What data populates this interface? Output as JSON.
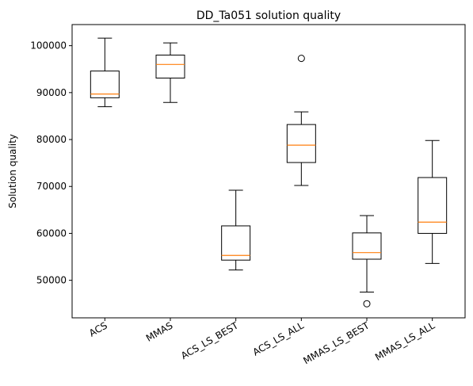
{
  "chart_data": {
    "type": "boxplot",
    "title": "DD_Ta051 solution quality",
    "xlabel": "",
    "ylabel": "Solution quality",
    "ylim": [
      42000,
      104500
    ],
    "yticks": [
      50000,
      60000,
      70000,
      80000,
      90000,
      100000
    ],
    "categories": [
      "ACS",
      "MMAS",
      "ACS_LS_BEST",
      "ACS_LS_ALL",
      "MMAS_LS_BEST",
      "MMAS_LS_ALL"
    ],
    "boxes": [
      {
        "whisker_low": 87000,
        "q1": 88900,
        "median": 89700,
        "q3": 94600,
        "whisker_high": 101600,
        "outliers": []
      },
      {
        "whisker_low": 87900,
        "q1": 93100,
        "median": 96000,
        "q3": 98000,
        "whisker_high": 100600,
        "outliers": []
      },
      {
        "whisker_low": 52200,
        "q1": 54300,
        "median": 55300,
        "q3": 61600,
        "whisker_high": 69200,
        "outliers": []
      },
      {
        "whisker_low": 70200,
        "q1": 75100,
        "median": 78800,
        "q3": 83200,
        "whisker_high": 85900,
        "outliers": [
          97300
        ]
      },
      {
        "whisker_low": 47500,
        "q1": 54500,
        "median": 55900,
        "q3": 60100,
        "whisker_high": 63800,
        "outliers": [
          45000
        ]
      },
      {
        "whisker_low": 53600,
        "q1": 60000,
        "median": 62400,
        "q3": 71900,
        "whisker_high": 79800,
        "outliers": []
      }
    ],
    "grid": false,
    "legend": "none"
  },
  "colors": {
    "box": "#000000",
    "median": "#ff7f0e",
    "background": "#ffffff"
  }
}
